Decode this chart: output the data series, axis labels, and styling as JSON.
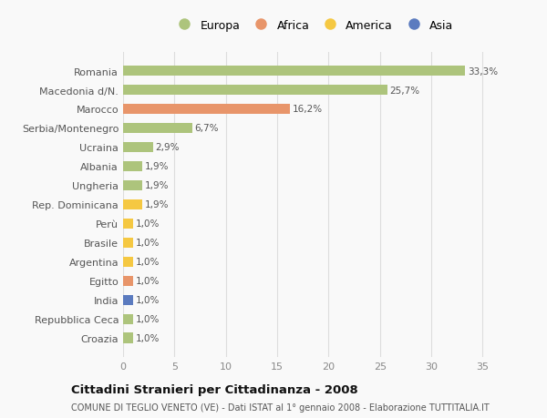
{
  "categories": [
    "Croazia",
    "Repubblica Ceca",
    "India",
    "Egitto",
    "Argentina",
    "Brasile",
    "Perù",
    "Rep. Dominicana",
    "Ungheria",
    "Albania",
    "Ucraina",
    "Serbia/Montenegro",
    "Marocco",
    "Macedonia d/N.",
    "Romania"
  ],
  "values": [
    1.0,
    1.0,
    1.0,
    1.0,
    1.0,
    1.0,
    1.0,
    1.9,
    1.9,
    1.9,
    2.9,
    6.7,
    16.2,
    25.7,
    33.3
  ],
  "labels": [
    "1,0%",
    "1,0%",
    "1,0%",
    "1,0%",
    "1,0%",
    "1,0%",
    "1,0%",
    "1,9%",
    "1,9%",
    "1,9%",
    "2,9%",
    "6,7%",
    "16,2%",
    "25,7%",
    "33,3%"
  ],
  "colors": [
    "#adc47c",
    "#adc47c",
    "#5b7bbf",
    "#e8956a",
    "#f5c842",
    "#f5c842",
    "#f5c842",
    "#f5c842",
    "#adc47c",
    "#adc47c",
    "#adc47c",
    "#adc47c",
    "#e8956a",
    "#adc47c",
    "#adc47c"
  ],
  "legend_labels": [
    "Europa",
    "Africa",
    "America",
    "Asia"
  ],
  "legend_colors": [
    "#adc47c",
    "#e8956a",
    "#f5c842",
    "#5b7bbf"
  ],
  "title": "Cittadini Stranieri per Cittadinanza - 2008",
  "subtitle": "COMUNE DI TEGLIO VENETO (VE) - Dati ISTAT al 1° gennaio 2008 - Elaborazione TUTTITALIA.IT",
  "xlim": [
    0,
    37
  ],
  "xticks": [
    0,
    5,
    10,
    15,
    20,
    25,
    30,
    35
  ],
  "bg_color": "#f9f9f9",
  "grid_color": "#dddddd",
  "bar_height": 0.55
}
